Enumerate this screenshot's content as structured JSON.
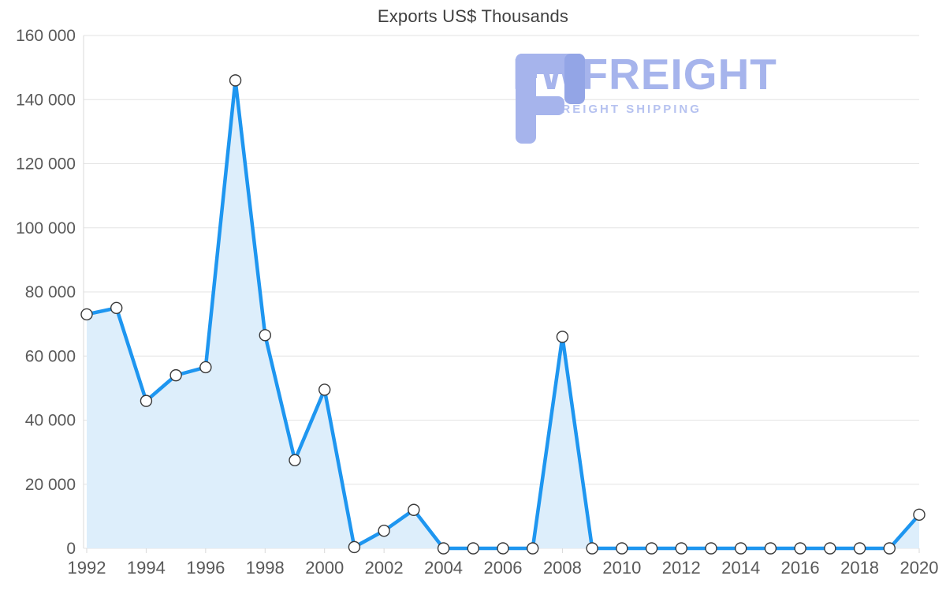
{
  "title": "Exports US$ Thousands",
  "logo": {
    "brand": "FWFREIGHT",
    "tagline": "FREIGHT SHIPPING"
  },
  "colors": {
    "line": "#1e96f0",
    "area_fill": "#ddeefb",
    "marker_fill": "#ffffff",
    "marker_stroke": "#3a3a3a",
    "grid": "#e3e3e3",
    "axis": "#d9d9d9",
    "tick_label": "#595959",
    "title_text": "#404040",
    "logo_main": "#a6b4ec",
    "logo_accent": "#93a5e6"
  },
  "chart_data": {
    "type": "area",
    "title": "Exports US$ Thousands",
    "x": [
      1992,
      1993,
      1994,
      1995,
      1996,
      1997,
      1998,
      1999,
      2000,
      2001,
      2002,
      2003,
      2004,
      2005,
      2006,
      2007,
      2008,
      2009,
      2010,
      2011,
      2012,
      2013,
      2014,
      2015,
      2016,
      2017,
      2018,
      2019,
      2020
    ],
    "values": [
      73000,
      75000,
      46000,
      54000,
      56500,
      146000,
      66500,
      27500,
      49500,
      400,
      5500,
      12000,
      0,
      0,
      0,
      0,
      66000,
      0,
      0,
      0,
      0,
      0,
      0,
      0,
      0,
      0,
      0,
      0,
      10500
    ],
    "xlabel": "",
    "ylabel": "",
    "ylim": [
      0,
      160000
    ],
    "ytick_step": 20000,
    "xtick_step": 2,
    "grid": true,
    "legend": "none",
    "marker": "circle-open"
  }
}
